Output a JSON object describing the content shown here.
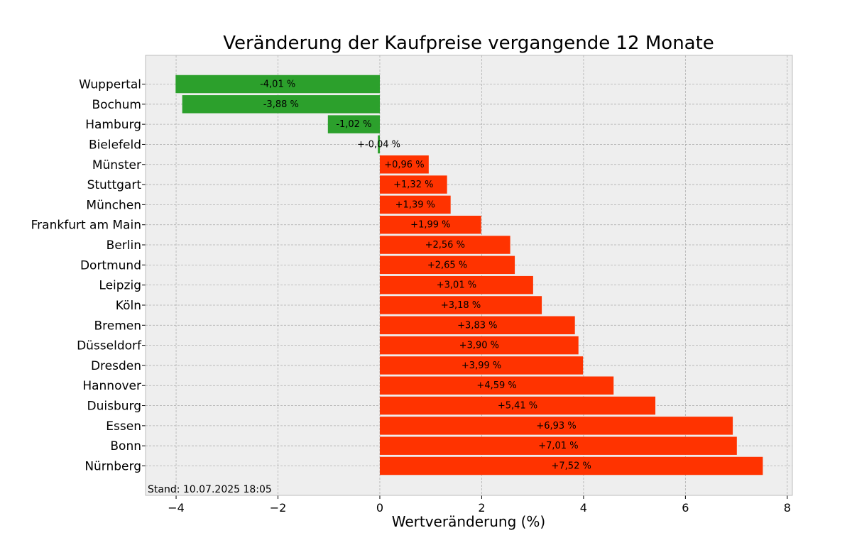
{
  "chart_data": {
    "type": "bar",
    "orientation": "horizontal",
    "title": "Veränderung der Kaufpreise vergangende 12 Monate",
    "xlabel": "Wertveränderung (%)",
    "ylabel": "",
    "xlim": [
      -4.6,
      8.1
    ],
    "xticks": [
      -4,
      -2,
      0,
      2,
      4,
      6,
      8
    ],
    "xtick_labels": [
      "−4",
      "−2",
      "0",
      "2",
      "4",
      "6",
      "8"
    ],
    "grid": true,
    "categories": [
      "Wuppertal",
      "Bochum",
      "Hamburg",
      "Bielefeld",
      "Münster",
      "Stuttgart",
      "München",
      "Frankfurt am Main",
      "Berlin",
      "Dortmund",
      "Leipzig",
      "Köln",
      "Bremen",
      "Düsseldorf",
      "Dresden",
      "Hannover",
      "Duisburg",
      "Essen",
      "Bonn",
      "Nürnberg"
    ],
    "values": [
      -4.01,
      -3.88,
      -1.02,
      -0.04,
      0.96,
      1.32,
      1.39,
      1.99,
      2.56,
      2.65,
      3.01,
      3.18,
      3.83,
      3.9,
      3.99,
      4.59,
      5.41,
      6.93,
      7.01,
      7.52
    ],
    "value_labels": [
      "-4,01 %",
      "-3,88 %",
      "-1,02 %",
      "+-0,04 %",
      "+0,96 %",
      "+1,32 %",
      "+1,39 %",
      "+1,99 %",
      "+2,56 %",
      "+2,65 %",
      "+3,01 %",
      "+3,18 %",
      "+3,83 %",
      "+3,90 %",
      "+3,99 %",
      "+4,59 %",
      "+5,41 %",
      "+6,93 %",
      "+7,01 %",
      "+7,52 %"
    ],
    "colors": {
      "negative": "#2ca02c",
      "positive": "#ff3300",
      "background": "#eeeeee",
      "frame": "#bcbcbc"
    },
    "footnote": "Stand: 10.07.2025 18:05"
  }
}
